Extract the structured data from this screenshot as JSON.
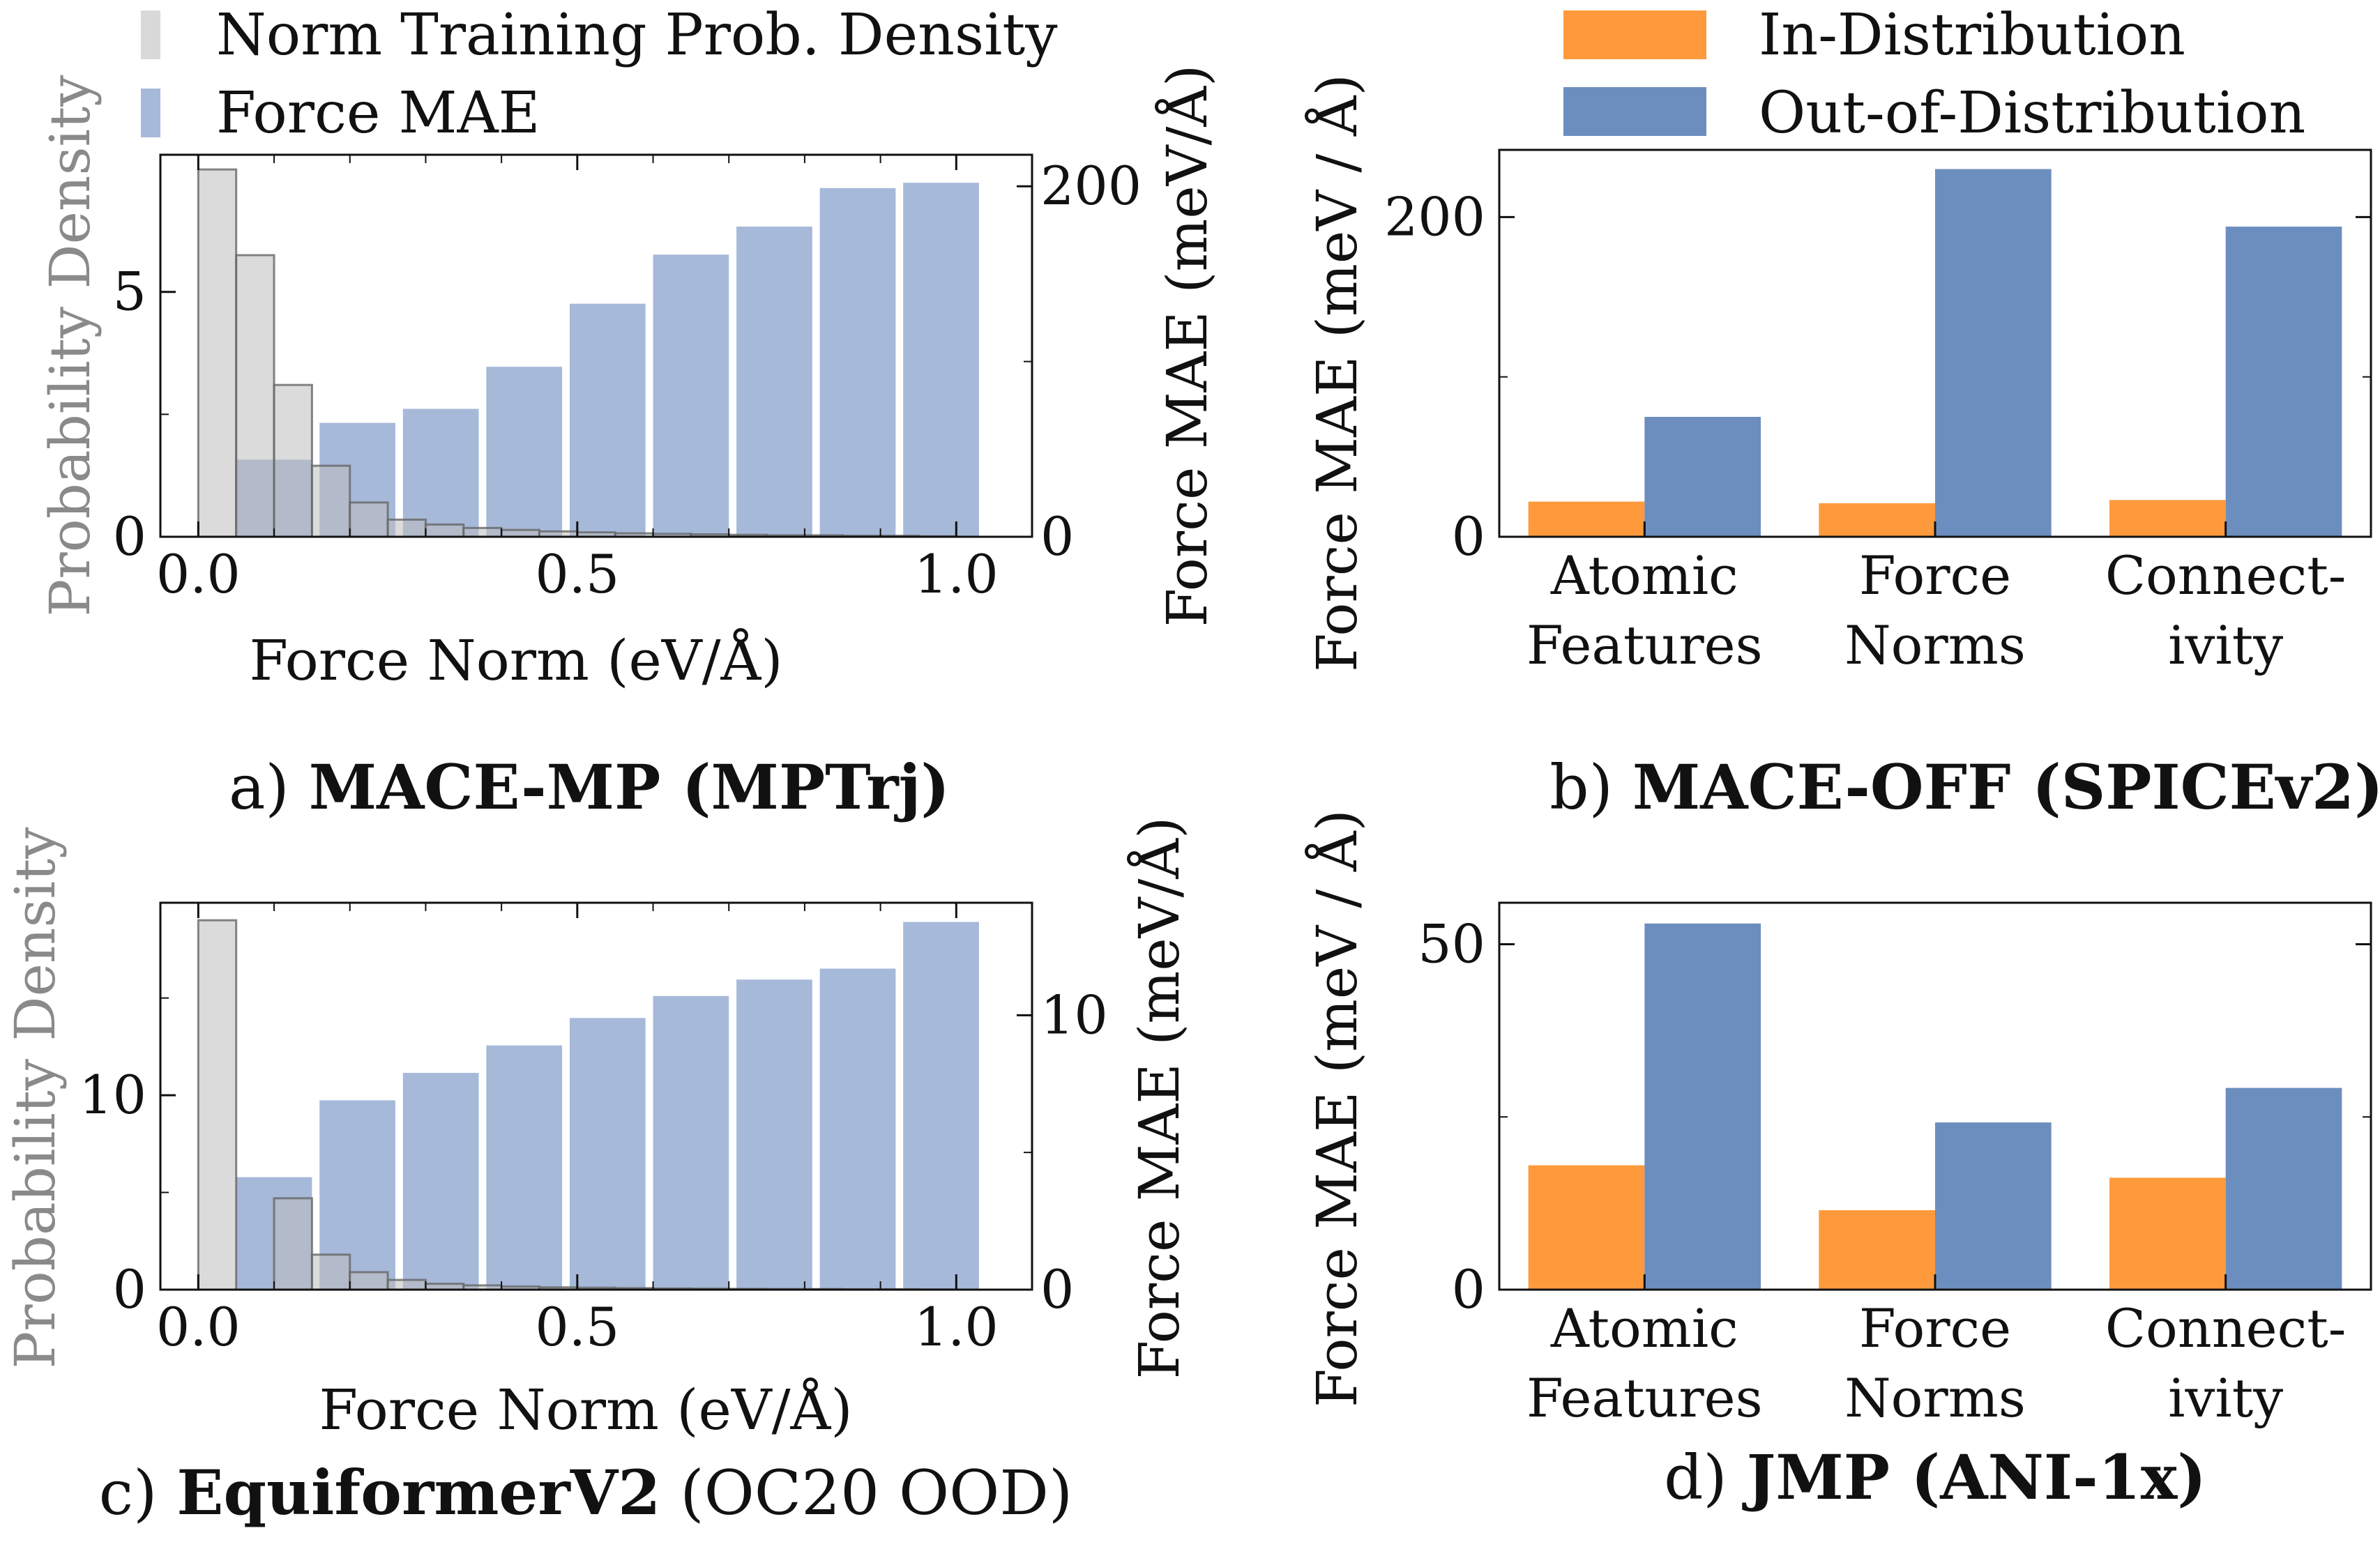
{
  "colors": {
    "norm_density": "#d9d9d9",
    "force_mae": "#a6b9d9",
    "in_distribution": "#ff9a3c",
    "out_of_distribution": "#6c8ebf",
    "axis": "#111111",
    "density_axis_text": "#8a8a8a"
  },
  "legends": {
    "hist": [
      "Norm Training Prob. Density",
      "Force MAE"
    ],
    "bars": [
      "In-Distribution",
      "Out-of-Distribution"
    ]
  },
  "captions": {
    "a": {
      "prefix": "a) ",
      "bold": "MACE-MP",
      "rest": " (MPTrj)"
    },
    "b": {
      "prefix": "b) ",
      "bold": "MACE-OFF",
      "rest": " (SPICEv2)"
    },
    "c": {
      "prefix": "c) ",
      "bold": "EquiformerV2",
      "rest": " (OC20 OOD)"
    },
    "d": {
      "prefix": "d) ",
      "bold": "JMP",
      "rest": " (ANI-1x)"
    }
  },
  "chart_data": [
    {
      "id": "a",
      "type": "bar",
      "xlabel": "Force Norm (eV/Å)",
      "ylabel": "Probability Density",
      "y2label": "Force MAE (meV/Å)",
      "xlim": [
        -0.05,
        1.1
      ],
      "ylim": [
        0,
        7.8
      ],
      "y2lim": [
        0,
        218
      ],
      "xticks": [
        0.0,
        0.5,
        1.0
      ],
      "xtick_labels": [
        "0.0",
        "0.5",
        "1.0"
      ],
      "yticks": [
        0,
        5
      ],
      "yticks_minor": [
        2.5
      ],
      "ytick_labels": [
        "0",
        "5"
      ],
      "y2ticks": [
        0,
        200
      ],
      "y2ticks_minor": [
        100
      ],
      "y2tick_labels": [
        "0",
        "200"
      ],
      "density_width": 0.05,
      "density": {
        "x": [
          0.0,
          0.05,
          0.1,
          0.15,
          0.2,
          0.25,
          0.3,
          0.35,
          0.4,
          0.45,
          0.5,
          0.55,
          0.6,
          0.65,
          0.7,
          0.75,
          0.8,
          0.85,
          0.9,
          0.95
        ],
        "values": [
          7.5,
          5.75,
          3.1,
          1.45,
          0.7,
          0.35,
          0.25,
          0.18,
          0.14,
          0.11,
          0.09,
          0.07,
          0.06,
          0.05,
          0.04,
          0.03,
          0.03,
          0.02,
          0.02,
          0.01
        ]
      },
      "mae_width": 0.1,
      "mae": {
        "x": [
          0.05,
          0.16,
          0.27,
          0.38,
          0.49,
          0.6,
          0.71,
          0.82,
          0.93
        ],
        "values": [
          44,
          65,
          73,
          97,
          133,
          161,
          177,
          199,
          202
        ]
      }
    },
    {
      "id": "b",
      "type": "bar",
      "ylabel": "Force MAE (meV / Å)",
      "categories": [
        [
          "Atomic",
          "Features"
        ],
        [
          "Force",
          "Norms"
        ],
        [
          "Connect-",
          "ivity"
        ]
      ],
      "ylim": [
        0,
        242
      ],
      "yticks": [
        0,
        200
      ],
      "yticks_minor": [
        100
      ],
      "ytick_labels": [
        "0",
        "200"
      ],
      "series": [
        {
          "name": "In-Distribution",
          "values": [
            22,
            21,
            23
          ]
        },
        {
          "name": "Out-of-Distribution",
          "values": [
            75,
            230,
            194
          ]
        }
      ]
    },
    {
      "id": "c",
      "type": "bar",
      "xlabel": "Force Norm (eV/Å)",
      "ylabel": "Probability Density",
      "y2label": "Force MAE (meV/Å)",
      "xlim": [
        -0.05,
        1.1
      ],
      "ylim": [
        0,
        19.9
      ],
      "y2lim": [
        0,
        14.1
      ],
      "xticks": [
        0.0,
        0.5,
        1.0
      ],
      "xtick_labels": [
        "0.0",
        "0.5",
        "1.0"
      ],
      "yticks": [
        0,
        10
      ],
      "yticks_minor": [
        5,
        15
      ],
      "ytick_labels": [
        "0",
        "10"
      ],
      "y2ticks": [
        0,
        10
      ],
      "y2ticks_minor": [
        5
      ],
      "y2tick_labels": [
        "0",
        "10"
      ],
      "density_width": 0.05,
      "density": {
        "x": [
          0.0,
          0.05,
          0.1,
          0.15,
          0.2,
          0.25,
          0.3,
          0.35,
          0.4,
          0.45,
          0.5,
          0.55,
          0.6,
          0.65,
          0.7,
          0.75,
          0.8,
          0.85,
          0.9,
          0.95
        ],
        "values": [
          19.0,
          0.0,
          4.7,
          1.8,
          0.9,
          0.5,
          0.3,
          0.22,
          0.16,
          0.12,
          0.1,
          0.08,
          0.06,
          0.05,
          0.04,
          0.03,
          0.03,
          0.02,
          0.02,
          0.01
        ]
      },
      "mae_width": 0.1,
      "mae": {
        "x": [
          0.05,
          0.16,
          0.27,
          0.38,
          0.49,
          0.6,
          0.71,
          0.82,
          0.93
        ],
        "values": [
          4.1,
          6.9,
          7.9,
          8.9,
          9.9,
          10.7,
          11.3,
          11.7,
          13.4
        ]
      }
    },
    {
      "id": "d",
      "type": "bar",
      "ylabel": "Force MAE (meV / Å)",
      "categories": [
        [
          "Atomic",
          "Features"
        ],
        [
          "Force",
          "Norms"
        ],
        [
          "Connect-",
          "ivity"
        ]
      ],
      "ylim": [
        0,
        56
      ],
      "yticks": [
        0,
        50
      ],
      "yticks_minor": [
        25
      ],
      "ytick_labels": [
        "0",
        "50"
      ],
      "series": [
        {
          "name": "In-Distribution",
          "values": [
            18,
            11.5,
            16.2
          ]
        },
        {
          "name": "Out-of-Distribution",
          "values": [
            53,
            24.2,
            29.2
          ]
        }
      ]
    }
  ]
}
